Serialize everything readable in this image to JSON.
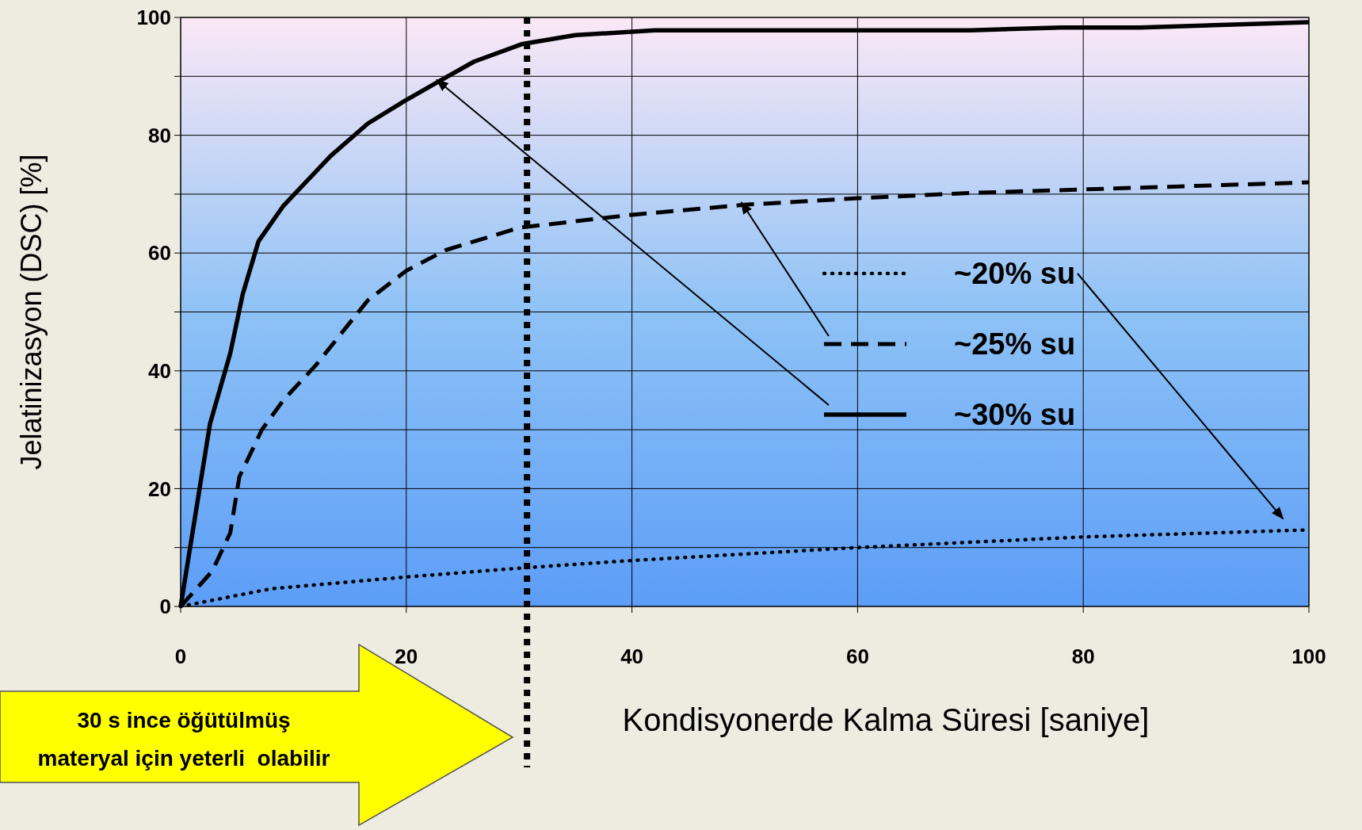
{
  "chart_data": {
    "type": "line",
    "xlabel": "Kondisyonerde Kalma Süresi [saniye]",
    "ylabel": "Jelatinizasyon (DSC) [%]",
    "xlim": [
      0,
      100
    ],
    "xticks": [
      0,
      20,
      40,
      60,
      80,
      100
    ],
    "ylim": [
      0,
      100
    ],
    "yticks": [
      0,
      {
        "value": 10,
        "label": null
      },
      20,
      {
        "value": 30,
        "label": null
      },
      40,
      {
        "value": 50,
        "label": null
      },
      60,
      {
        "value": 70,
        "label": null
      },
      80,
      {
        "value": 90,
        "label": null
      },
      100
    ],
    "grid": true,
    "legend": "right",
    "marker": "none",
    "series": [
      {
        "name": "~20% su",
        "color": "#000000",
        "line_style": "dotted",
        "x": [
          0,
          8,
          20,
          30,
          40,
          60,
          80,
          100
        ],
        "values": [
          0,
          3,
          5,
          6.5,
          7.8,
          10,
          11.8,
          13
        ]
      },
      {
        "name": "~25% su",
        "color": "#000000",
        "line_style": "dashed",
        "x": [
          0,
          2.8,
          4.4,
          5.2,
          7.2,
          9.1,
          12,
          16.6,
          20,
          23.5,
          30,
          40,
          50,
          60,
          70,
          80,
          90,
          100
        ],
        "values": [
          0,
          6,
          12.5,
          22,
          30,
          35,
          41,
          52,
          57,
          60.5,
          64.3,
          66.5,
          68.2,
          69.3,
          70.2,
          70.8,
          71.4,
          72
        ]
      },
      {
        "name": "~30% su",
        "color": "#000000",
        "line_style": "solid",
        "x": [
          0,
          2.6,
          4.4,
          5.5,
          6.9,
          9.1,
          13.3,
          16.6,
          20,
          23.2,
          26,
          30.3,
          35,
          42,
          70,
          78,
          85,
          100
        ],
        "values": [
          0,
          31,
          43,
          53,
          62,
          68,
          76.5,
          82,
          86,
          89.5,
          92.5,
          95.5,
          97,
          97.8,
          97.8,
          98.3,
          98.3,
          99.2
        ]
      }
    ],
    "ref_lines": [
      {
        "axis": "x",
        "value": 30.7,
        "color": "#000000",
        "line_style": "dotted"
      }
    ],
    "annotations": [
      "30 s ince öğütülmüş materyal için yeterli  olabilir"
    ]
  }
}
